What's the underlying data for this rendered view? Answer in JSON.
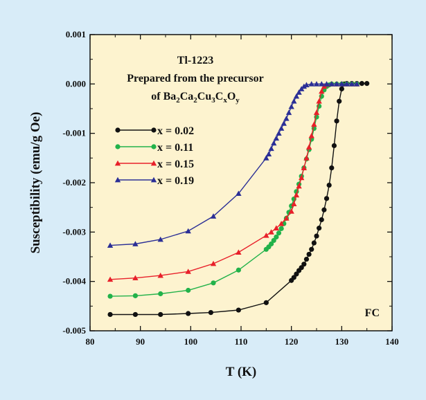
{
  "chart_data": {
    "type": "line",
    "xlabel": "T (K)",
    "ylabel": "Susceptibility (emu/g Oe)",
    "xlim": [
      80,
      140
    ],
    "ylim": [
      -0.005,
      0.001
    ],
    "xticks": [
      "80",
      "90",
      "100",
      "110",
      "120",
      "130",
      "140"
    ],
    "yticks": [
      "0.001",
      "0.000",
      "-0.001",
      "-0.002",
      "-0.003",
      "-0.004",
      "-0.005"
    ],
    "grid": false,
    "legend_position": "left",
    "annotation_lines": [
      "Tl-1223",
      "Prepared from the precursor",
      "of Ba2Ca2Cu3CxOy"
    ],
    "formula_parts": {
      "prefix": "of Ba",
      "s1": "2",
      "ca": "Ca",
      "s2": "2",
      "cu": "Cu",
      "s3": "3",
      "c": "C",
      "s4": "x",
      "o": "O",
      "s5": "y"
    },
    "corner_label": "FC",
    "series": [
      {
        "name": "x = 0.02",
        "color": "#111111",
        "marker": "circle",
        "points": [
          [
            84,
            -0.00467
          ],
          [
            89,
            -0.00467
          ],
          [
            94,
            -0.00467
          ],
          [
            99.5,
            -0.00465
          ],
          [
            104,
            -0.00463
          ],
          [
            109.5,
            -0.00458
          ],
          [
            115,
            -0.00443
          ],
          [
            120,
            -0.00398
          ],
          [
            120.5,
            -0.00392
          ],
          [
            121,
            -0.00385
          ],
          [
            121.5,
            -0.00378
          ],
          [
            122,
            -0.00372
          ],
          [
            122.5,
            -0.00365
          ],
          [
            123,
            -0.00355
          ],
          [
            123.5,
            -0.00345
          ],
          [
            124,
            -0.00335
          ],
          [
            124.5,
            -0.00322
          ],
          [
            125,
            -0.00308
          ],
          [
            125.5,
            -0.00292
          ],
          [
            126,
            -0.00275
          ],
          [
            126.5,
            -0.00255
          ],
          [
            127,
            -0.00232
          ],
          [
            127.5,
            -0.00205
          ],
          [
            128,
            -0.0017
          ],
          [
            128.5,
            -0.00125
          ],
          [
            129,
            -0.00075
          ],
          [
            129.5,
            -0.00035
          ],
          [
            130,
            -0.0001
          ],
          [
            130.5,
            0.0
          ],
          [
            131,
            1e-05
          ],
          [
            132,
            1e-05
          ],
          [
            133,
            1e-05
          ],
          [
            134,
            1e-05
          ],
          [
            135,
            1e-05
          ]
        ]
      },
      {
        "name": "x = 0.11",
        "color": "#22b24a",
        "marker": "circle",
        "points": [
          [
            84,
            -0.0043
          ],
          [
            89,
            -0.00429
          ],
          [
            94,
            -0.00425
          ],
          [
            99.5,
            -0.00418
          ],
          [
            104.5,
            -0.00403
          ],
          [
            109.5,
            -0.00377
          ],
          [
            115,
            -0.00335
          ],
          [
            115.5,
            -0.0033
          ],
          [
            116,
            -0.00324
          ],
          [
            116.5,
            -0.00317
          ],
          [
            117,
            -0.0031
          ],
          [
            117.5,
            -0.00302
          ],
          [
            118,
            -0.00293
          ],
          [
            118.5,
            -0.00283
          ],
          [
            119,
            -0.00272
          ],
          [
            119.5,
            -0.0026
          ],
          [
            120,
            -0.00247
          ],
          [
            120.5,
            -0.00233
          ],
          [
            121,
            -0.00218
          ],
          [
            121.5,
            -0.00203
          ],
          [
            122,
            -0.00187
          ],
          [
            122.5,
            -0.0017
          ],
          [
            123,
            -0.00152
          ],
          [
            123.5,
            -0.00133
          ],
          [
            124,
            -0.00112
          ],
          [
            124.5,
            -0.0009
          ],
          [
            125,
            -0.00067
          ],
          [
            125.5,
            -0.00045
          ],
          [
            126,
            -0.00025
          ],
          [
            126.5,
            -0.00012
          ],
          [
            127,
            -5e-05
          ],
          [
            127.5,
            -2e-05
          ],
          [
            128,
            0.0
          ],
          [
            129,
            0.0
          ],
          [
            130,
            0.0
          ],
          [
            131,
            0.0
          ],
          [
            132,
            0.0
          ],
          [
            133,
            0.0
          ]
        ]
      },
      {
        "name": "x = 0.15",
        "color": "#e8202a",
        "marker": "triangle",
        "points": [
          [
            84,
            -0.00396
          ],
          [
            89,
            -0.00393
          ],
          [
            94,
            -0.00388
          ],
          [
            99.5,
            -0.0038
          ],
          [
            104.5,
            -0.00364
          ],
          [
            109.5,
            -0.00341
          ],
          [
            115,
            -0.00307
          ],
          [
            116,
            -0.003
          ],
          [
            117,
            -0.00292
          ],
          [
            118,
            -0.00283
          ],
          [
            119,
            -0.00272
          ],
          [
            120,
            -0.00258
          ],
          [
            120.5,
            -0.00243
          ],
          [
            121,
            -0.00225
          ],
          [
            121.5,
            -0.00207
          ],
          [
            122,
            -0.0019
          ],
          [
            122.5,
            -0.0017
          ],
          [
            123,
            -0.0015
          ],
          [
            123.5,
            -0.00128
          ],
          [
            124,
            -0.00105
          ],
          [
            124.5,
            -0.00082
          ],
          [
            125,
            -0.00058
          ],
          [
            125.5,
            -0.00035
          ],
          [
            126,
            -0.00015
          ],
          [
            126.5,
            -5e-05
          ],
          [
            127,
            -1e-05
          ],
          [
            128,
            0.0
          ],
          [
            129,
            0.0
          ],
          [
            130,
            0.0
          ],
          [
            131,
            0.0
          ],
          [
            132,
            0.0
          ],
          [
            133,
            0.0
          ]
        ]
      },
      {
        "name": "x = 0.19",
        "color": "#2b2f96",
        "marker": "triangle",
        "points": [
          [
            84,
            -0.00327
          ],
          [
            89,
            -0.00324
          ],
          [
            94,
            -0.00315
          ],
          [
            99.5,
            -0.00298
          ],
          [
            104.5,
            -0.00268
          ],
          [
            109.5,
            -0.00222
          ],
          [
            115,
            -0.0015
          ],
          [
            115.5,
            -0.00142
          ],
          [
            116,
            -0.00131
          ],
          [
            116.5,
            -0.0012
          ],
          [
            117,
            -0.0011
          ],
          [
            117.5,
            -0.001
          ],
          [
            118,
            -0.0009
          ],
          [
            118.5,
            -0.0008
          ],
          [
            119,
            -0.0007
          ],
          [
            119.5,
            -0.00058
          ],
          [
            120,
            -0.00046
          ],
          [
            120.5,
            -0.00035
          ],
          [
            121,
            -0.00025
          ],
          [
            121.5,
            -0.00017
          ],
          [
            122,
            -0.0001
          ],
          [
            122.5,
            -5e-05
          ],
          [
            123,
            -2e-05
          ],
          [
            124,
            0.0
          ],
          [
            125,
            0.0
          ],
          [
            126,
            0.0
          ],
          [
            127,
            0.0
          ],
          [
            128,
            0.0
          ],
          [
            129,
            0.0
          ],
          [
            130,
            0.0
          ],
          [
            131,
            0.0
          ],
          [
            132,
            0.0
          ],
          [
            133,
            0.0
          ]
        ]
      }
    ]
  }
}
